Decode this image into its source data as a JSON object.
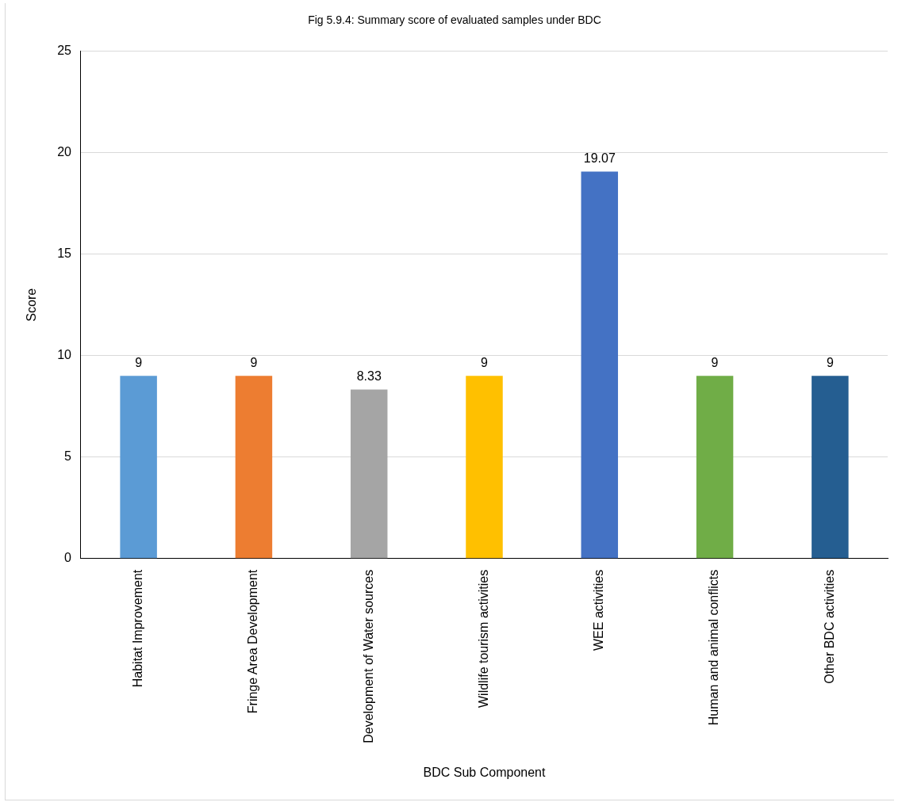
{
  "chart_data": {
    "type": "bar",
    "title": "Fig 5.9.4: Summary score of evaluated samples under BDC",
    "xlabel": "BDC Sub Component",
    "ylabel": "Score",
    "categories": [
      "Habitat Improvement",
      "Fringe Area Development",
      "Development of Water sources",
      "Wildlife tourism activities",
      "WEE activities",
      "Human and animal conflicts",
      "Other BDC activities"
    ],
    "values": [
      9,
      9,
      8.33,
      9,
      19.07,
      9,
      9
    ],
    "colors": [
      "#5b9bd5",
      "#ed7d31",
      "#a5a5a5",
      "#ffc000",
      "#4472c4",
      "#70ad47",
      "#255e91"
    ],
    "ylim": [
      0,
      25
    ],
    "yticks": [
      0,
      5,
      10,
      15,
      20,
      25
    ],
    "grid": "y",
    "legend": false,
    "data_labels": true
  }
}
